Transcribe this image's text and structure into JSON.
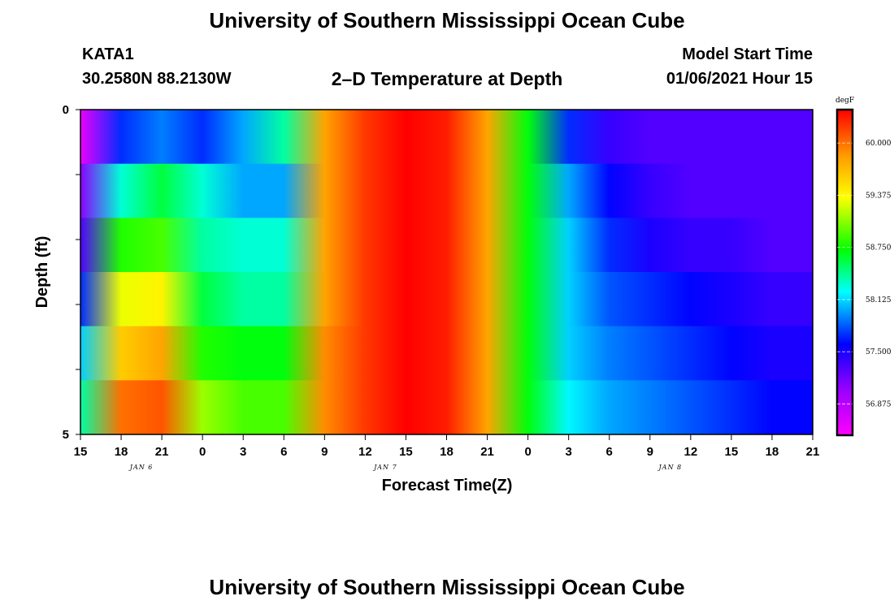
{
  "header": {
    "title": "University of Southern Mississippi Ocean Cube",
    "station": "KATA1",
    "coords": "30.2580N 88.2130W",
    "subtitle": "2–D Temperature at Depth",
    "model_start_label": "Model Start Time",
    "model_start_value": "01/06/2021 Hour 15"
  },
  "footer": {
    "title": "University of Southern Mississippi Ocean Cube"
  },
  "chart_data": {
    "type": "heatmap",
    "title": "2–D Temperature at Depth",
    "xlabel": "Forecast Time(Z)",
    "ylabel": "Depth (ft)",
    "x_tick_labels": [
      "15",
      "18",
      "21",
      "0",
      "3",
      "6",
      "9",
      "12",
      "15",
      "18",
      "21",
      "0",
      "3",
      "6",
      "9",
      "12",
      "15",
      "18",
      "21"
    ],
    "date_labels": [
      {
        "text": "JAN  6",
        "tick_index": 1
      },
      {
        "text": "JAN  7",
        "tick_index": 7
      },
      {
        "text": "JAN  8",
        "tick_index": 14
      }
    ],
    "y_tick_labels": [
      "0",
      "5"
    ],
    "ylim": [
      0,
      5
    ],
    "depths_ft": [
      0,
      1,
      2,
      3,
      4,
      5
    ],
    "hours_from_start": [
      0,
      3,
      6,
      9,
      12,
      15,
      18,
      21,
      24,
      27,
      30,
      33,
      36,
      39,
      42,
      45,
      48,
      51,
      54
    ],
    "colorbar": {
      "unit": "degF",
      "range": [
        56.5,
        60.4
      ],
      "tick_labels": [
        "60.000",
        "59.375",
        "58.750",
        "58.125",
        "57.500",
        "56.875"
      ],
      "tick_values": [
        60.0,
        59.375,
        58.75,
        58.125,
        57.5,
        56.875
      ]
    },
    "series": [
      {
        "depth": 0,
        "values": [
          56.6,
          57.7,
          57.9,
          57.7,
          58.0,
          58.4,
          59.8,
          60.2,
          60.4,
          60.3,
          59.8,
          58.7,
          57.7,
          57.4,
          57.3,
          57.3,
          57.3,
          57.3,
          57.3
        ]
      },
      {
        "depth": 1,
        "values": [
          57.1,
          58.3,
          58.6,
          58.3,
          58.0,
          58.0,
          59.8,
          60.2,
          60.4,
          60.3,
          59.8,
          58.7,
          58.0,
          57.6,
          57.4,
          57.3,
          57.3,
          57.3,
          57.3
        ]
      },
      {
        "depth": 2,
        "values": [
          57.3,
          58.8,
          58.9,
          58.4,
          58.3,
          58.3,
          59.8,
          60.2,
          60.4,
          60.3,
          59.8,
          58.7,
          58.1,
          57.7,
          57.5,
          57.4,
          57.4,
          57.3,
          57.3
        ]
      },
      {
        "depth": 3,
        "values": [
          57.7,
          59.3,
          59.4,
          58.6,
          58.4,
          58.4,
          59.8,
          60.2,
          60.4,
          60.3,
          59.8,
          58.7,
          58.1,
          57.8,
          57.7,
          57.6,
          57.5,
          57.4,
          57.4
        ]
      },
      {
        "depth": 4,
        "values": [
          58.1,
          59.6,
          59.8,
          58.8,
          58.7,
          58.7,
          59.9,
          60.2,
          60.4,
          60.3,
          59.8,
          58.7,
          58.1,
          57.9,
          57.8,
          57.7,
          57.6,
          57.5,
          57.5
        ]
      },
      {
        "depth": 5,
        "values": [
          58.4,
          60.0,
          60.1,
          59.1,
          58.9,
          58.9,
          59.9,
          60.2,
          60.4,
          60.3,
          59.8,
          58.7,
          58.2,
          58.0,
          57.9,
          57.8,
          57.7,
          57.6,
          57.6
        ]
      }
    ]
  }
}
